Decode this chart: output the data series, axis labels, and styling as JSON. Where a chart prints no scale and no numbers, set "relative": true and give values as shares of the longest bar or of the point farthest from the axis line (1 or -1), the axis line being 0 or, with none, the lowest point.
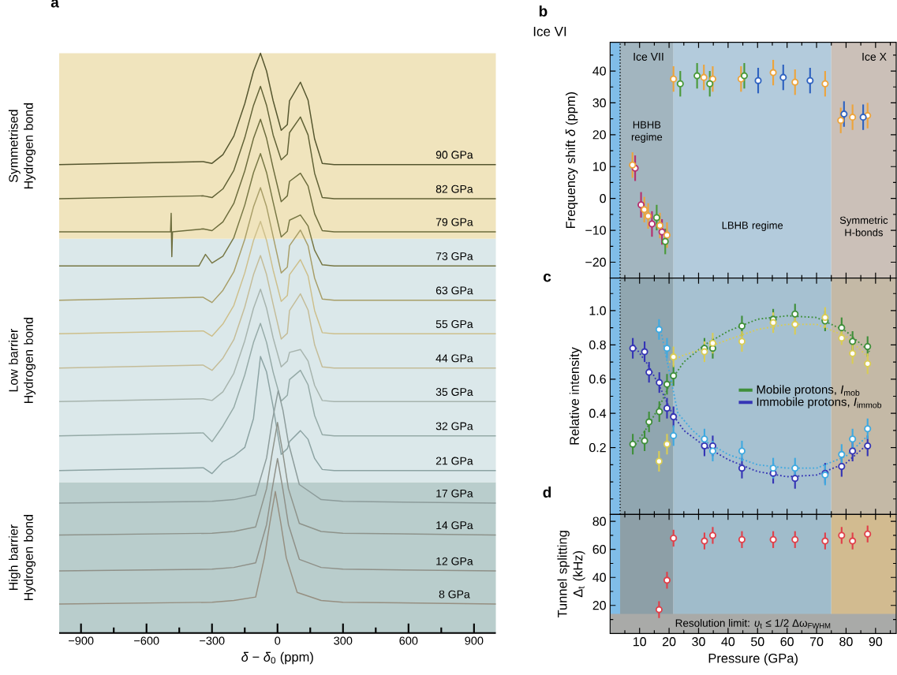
{
  "chart_data": [
    {
      "type": "line",
      "title": "a",
      "xlabel": "*δ* − *δ*$_{0}$ (ppm)",
      "relative": true,
      "xlim": [
        -1000,
        1000
      ],
      "xticks": [
        {
          "value": -900,
          "label": "−900"
        },
        {
          "value": -750,
          "label": null
        },
        {
          "value": -600,
          "label": "−600"
        },
        {
          "value": -450,
          "label": null
        },
        {
          "value": -300,
          "label": "−300"
        },
        {
          "value": -150,
          "label": null
        },
        0,
        {
          "value": 150,
          "label": null
        },
        300,
        {
          "value": 450,
          "label": null
        },
        600,
        {
          "value": 750,
          "label": null
        },
        900
      ],
      "bands": [
        {
          "axis": "y",
          "from": 0,
          "to": 0.26,
          "label": "High barrier Hydrogen bond",
          "color": "#b9cdcc"
        },
        {
          "axis": "y",
          "from": 0.26,
          "to": 0.68,
          "label": "Low barrier Hydrogen bond",
          "color": "#dbe8ea"
        },
        {
          "axis": "y",
          "from": 0.68,
          "to": 1,
          "label": "Symmetrised Hydrogen bond",
          "color": "#f0e4bd"
        }
      ],
      "series": [
        {
          "name": "90 GPa",
          "color": "#55562f",
          "x": [
            -1000,
            -340,
            -300,
            -250,
            -200,
            -150,
            -110,
            -78,
            -50,
            -20,
            17,
            45,
            55,
            105,
            140,
            170,
            205,
            260,
            1000
          ],
          "values": [
            0.808,
            0.813,
            0.81,
            0.825,
            0.857,
            0.913,
            0.969,
            1.0,
            0.969,
            0.918,
            0.867,
            0.877,
            0.918,
            0.95,
            0.919,
            0.852,
            0.81,
            0.808,
            0.808
          ]
        },
        {
          "name": "82 GPa",
          "color": "#616236",
          "x": [
            -1000,
            -340,
            -300,
            -250,
            -200,
            -150,
            -110,
            -78,
            -50,
            -20,
            17,
            45,
            55,
            105,
            140,
            170,
            205,
            260,
            1000
          ],
          "values": [
            0.749,
            0.754,
            0.751,
            0.766,
            0.798,
            0.854,
            0.91,
            0.943,
            0.91,
            0.859,
            0.816,
            0.826,
            0.863,
            0.89,
            0.859,
            0.793,
            0.751,
            0.749,
            0.749
          ]
        },
        {
          "name": "79 GPa",
          "color": "#6c6c3c",
          "x": [
            -1000,
            -490,
            -487,
            -484,
            -481,
            -340,
            -300,
            -250,
            -200,
            -150,
            -110,
            -78,
            -50,
            -20,
            17,
            45,
            55,
            105,
            140,
            170,
            205,
            260,
            1000
          ],
          "values": [
            0.692,
            0.692,
            0.724,
            0.649,
            0.692,
            0.697,
            0.694,
            0.709,
            0.741,
            0.797,
            0.853,
            0.886,
            0.853,
            0.802,
            0.744,
            0.754,
            0.779,
            0.793,
            0.771,
            0.723,
            0.694,
            0.692,
            0.692
          ]
        },
        {
          "name": "73 GPa",
          "color": "#777744",
          "x": [
            -1000,
            -360,
            -330,
            -300,
            -250,
            -200,
            -150,
            -110,
            -78,
            -50,
            -20,
            17,
            45,
            55,
            105,
            140,
            170,
            205,
            260,
            1000
          ],
          "values": [
            0.633,
            0.633,
            0.653,
            0.638,
            0.65,
            0.682,
            0.738,
            0.794,
            0.827,
            0.794,
            0.743,
            0.683,
            0.693,
            0.712,
            0.721,
            0.702,
            0.66,
            0.635,
            0.633,
            0.633
          ]
        },
        {
          "name": "63 GPa",
          "color": "#a89e68",
          "x": [
            -1000,
            -340,
            -300,
            -250,
            -200,
            -150,
            -110,
            -78,
            -50,
            -20,
            17,
            45,
            55,
            105,
            140,
            170,
            205,
            260,
            1000
          ],
          "values": [
            0.574,
            0.579,
            0.57,
            0.591,
            0.623,
            0.679,
            0.735,
            0.768,
            0.735,
            0.684,
            0.621,
            0.631,
            0.668,
            0.695,
            0.668,
            0.612,
            0.576,
            0.574,
            0.574
          ]
        },
        {
          "name": "55 GPa",
          "color": "#cdbf8b",
          "x": [
            -1000,
            -340,
            -300,
            -250,
            -200,
            -150,
            -110,
            -78,
            -50,
            -20,
            17,
            45,
            55,
            105,
            140,
            170,
            205,
            260,
            1000
          ],
          "values": [
            0.516,
            0.521,
            0.512,
            0.533,
            0.565,
            0.621,
            0.677,
            0.71,
            0.677,
            0.626,
            0.572,
            0.582,
            0.618,
            0.644,
            0.616,
            0.556,
            0.518,
            0.516,
            0.516
          ]
        },
        {
          "name": "44 GPa",
          "color": "#c4bc98",
          "x": [
            -1000,
            -340,
            -300,
            -250,
            -200,
            -150,
            -110,
            -78,
            -50,
            -20,
            17,
            45,
            55,
            105,
            140,
            170,
            205,
            260,
            1000
          ],
          "values": [
            0.457,
            0.462,
            0.453,
            0.474,
            0.506,
            0.562,
            0.618,
            0.651,
            0.618,
            0.567,
            0.507,
            0.517,
            0.556,
            0.585,
            0.557,
            0.497,
            0.459,
            0.457,
            0.457
          ]
        },
        {
          "name": "35 GPa",
          "color": "#a7b4ae",
          "x": [
            -1000,
            -340,
            -300,
            -250,
            -200,
            -150,
            -110,
            -78,
            -50,
            -20,
            17,
            45,
            55,
            105,
            140,
            170,
            205,
            260,
            1000
          ],
          "values": [
            0.399,
            0.404,
            0.401,
            0.416,
            0.448,
            0.504,
            0.56,
            0.593,
            0.56,
            0.509,
            0.459,
            0.469,
            0.484,
            0.489,
            0.469,
            0.427,
            0.401,
            0.399,
            0.399
          ]
        },
        {
          "name": "32 GPa",
          "color": "#95aaa7",
          "x": [
            -1000,
            -340,
            -300,
            -250,
            -200,
            -150,
            -110,
            -78,
            -50,
            -20,
            17,
            45,
            55,
            105,
            140,
            170,
            205,
            260,
            1000
          ],
          "values": [
            0.34,
            0.345,
            0.33,
            0.357,
            0.389,
            0.445,
            0.501,
            0.534,
            0.501,
            0.45,
            0.4,
            0.41,
            0.437,
            0.453,
            0.428,
            0.375,
            0.342,
            0.34,
            0.34
          ]
        },
        {
          "name": "21 GPa",
          "color": "#8ca3a3",
          "x": [
            -1000,
            -340,
            -300,
            -250,
            -200,
            -150,
            -110,
            -78,
            -50,
            -20,
            17,
            45,
            55,
            105,
            140,
            170,
            205,
            260,
            1000
          ],
          "values": [
            0.28,
            0.285,
            0.275,
            0.295,
            0.305,
            0.32,
            0.37,
            0.477,
            0.45,
            0.39,
            0.308,
            0.318,
            0.33,
            0.349,
            0.334,
            0.301,
            0.282,
            0.28,
            0.28
          ]
        },
        {
          "name": "17 GPa",
          "color": "#8d9c9b",
          "x": [
            -1000,
            -300,
            -200,
            -100,
            -50,
            -25,
            3,
            25,
            50,
            100,
            200,
            300,
            1000
          ],
          "values": [
            0.224,
            0.227,
            0.23,
            0.238,
            0.302,
            0.364,
            0.418,
            0.384,
            0.328,
            0.256,
            0.23,
            0.227,
            0.224
          ]
        },
        {
          "name": "14 GPa",
          "color": "#8e938b",
          "x": [
            -1000,
            -300,
            -200,
            -100,
            -50,
            -25,
            0,
            25,
            50,
            100,
            200,
            300,
            1000
          ],
          "values": [
            0.169,
            0.172,
            0.175,
            0.183,
            0.249,
            0.309,
            0.363,
            0.309,
            0.249,
            0.189,
            0.175,
            0.172,
            0.169
          ]
        },
        {
          "name": "12 GPa",
          "color": "#8f9088",
          "x": [
            -1000,
            -300,
            -200,
            -100,
            -50,
            -25,
            0,
            25,
            50,
            100,
            200,
            300,
            1000
          ],
          "values": [
            0.107,
            0.11,
            0.113,
            0.121,
            0.187,
            0.247,
            0.301,
            0.247,
            0.187,
            0.127,
            0.113,
            0.11,
            0.107
          ]
        },
        {
          "name": "8 GPa",
          "color": "#968f81",
          "x": [
            -1000,
            -300,
            -200,
            -100,
            -60,
            -35,
            -10,
            15,
            40,
            90,
            200,
            300,
            1000
          ],
          "values": [
            0.05,
            0.053,
            0.056,
            0.062,
            0.13,
            0.19,
            0.244,
            0.19,
            0.13,
            0.07,
            0.056,
            0.053,
            0.05
          ]
        }
      ]
    },
    {
      "type": "scatter",
      "title": "b",
      "ylabel": "Frequency shift *δ* (ppm)",
      "xlim": [
        0,
        97
      ],
      "ylim": [
        -25,
        49
      ],
      "tick_labels": "y",
      "marker": "circle",
      "xticks": [
        {
          "value": 5,
          "label": null
        },
        10,
        {
          "value": 15,
          "label": null
        },
        20,
        {
          "value": 25,
          "label": null
        },
        30,
        {
          "value": 35,
          "label": null
        },
        40,
        {
          "value": 45,
          "label": null
        },
        50,
        {
          "value": 55,
          "label": null
        },
        60,
        {
          "value": 65,
          "label": null
        },
        70,
        {
          "value": 75,
          "label": null
        },
        80,
        {
          "value": 85,
          "label": null
        },
        90,
        {
          "value": 95,
          "label": null
        }
      ],
      "yticks": [
        {
          "value": -20,
          "label": "−20"
        },
        {
          "value": -15,
          "label": null
        },
        {
          "value": -10,
          "label": "−10"
        },
        {
          "value": -5,
          "label": null
        },
        0,
        {
          "value": 5,
          "label": null
        },
        10,
        {
          "value": 15,
          "label": null
        },
        20,
        {
          "value": 25,
          "label": null
        },
        30,
        {
          "value": 35,
          "label": null
        },
        40,
        {
          "value": 45,
          "label": null
        }
      ],
      "annotations": [
        "Ice VI",
        "Ice VII",
        "Ice X"
      ],
      "ref_lines": [
        {
          "axis": "x",
          "value": 3.4,
          "line_style": "dotted"
        }
      ],
      "bands": [
        {
          "axis": "x",
          "from": 0,
          "to": 3.4,
          "color": "#80bde8"
        },
        {
          "axis": "x",
          "from": 3.4,
          "to": 21.5,
          "label": "HBHB regime",
          "color": "#a2b5bf"
        },
        {
          "axis": "x",
          "from": 21.5,
          "to": 75,
          "label": "LBHB regime",
          "color": "#b3cbdc"
        },
        {
          "axis": "x",
          "from": 75,
          "to": 97,
          "label": "Symmetric H-bonds",
          "color": "#cbc0b8"
        }
      ],
      "series": [
        {
          "color": "#b5306e",
          "x": [
            8.5,
            10.5,
            14.2,
            17.6
          ],
          "values": [
            9.5,
            -2,
            -8,
            -10.5
          ],
          "errors": [
            4,
            4,
            4,
            4
          ]
        },
        {
          "color": "#eda43c",
          "x": [
            7.6,
            11.6,
            12.9,
            16.9,
            19.3,
            21.5,
            31.8,
            34.8,
            44.4,
            55.3,
            62.7,
            72.9,
            78.2,
            82.2,
            87.3
          ],
          "values": [
            10.5,
            -3.5,
            -5.5,
            -8.5,
            -11.5,
            37.5,
            38,
            37.5,
            37.5,
            39.5,
            36.5,
            36,
            24.5,
            25.5,
            26
          ],
          "errors": [
            4,
            4,
            4,
            4,
            4,
            4,
            4,
            4,
            4,
            4,
            4,
            4,
            4,
            4,
            4
          ]
        },
        {
          "color": "#4a9a3a",
          "x": [
            15.8,
            18.7,
            23.8,
            29.5,
            33.8,
            45.5
          ],
          "values": [
            -6,
            -13.5,
            36,
            38.5,
            36,
            38.5
          ],
          "errors": [
            4,
            4,
            4,
            4,
            4,
            4
          ]
        },
        {
          "color": "#2e62c0",
          "x": [
            50.2,
            58.7,
            67.8,
            79.3,
            85.8
          ],
          "values": [
            37,
            38,
            37,
            26.5,
            25.5
          ],
          "errors": [
            4,
            4,
            4,
            4,
            4
          ]
        }
      ]
    },
    {
      "type": "scatter",
      "title": "c",
      "ylabel": "Relative intensity",
      "xlim": [
        0,
        97
      ],
      "ylim": [
        -0.19,
        1.19
      ],
      "tick_labels": "y",
      "marker": "circle",
      "legend": "right",
      "xticks": [
        {
          "value": 5,
          "label": null
        },
        10,
        {
          "value": 15,
          "label": null
        },
        20,
        {
          "value": 25,
          "label": null
        },
        30,
        {
          "value": 35,
          "label": null
        },
        40,
        {
          "value": 45,
          "label": null
        },
        50,
        {
          "value": 55,
          "label": null
        },
        60,
        {
          "value": 65,
          "label": null
        },
        70,
        {
          "value": 75,
          "label": null
        },
        80,
        {
          "value": 85,
          "label": null
        },
        90,
        {
          "value": 95,
          "label": null
        }
      ],
      "yticks": [
        {
          "value": -0.1,
          "label": null
        },
        {
          "value": 0,
          "label": null
        },
        {
          "value": 0.1,
          "label": null
        },
        0.2,
        {
          "value": 0.3,
          "label": null
        },
        0.4,
        {
          "value": 0.5,
          "label": null
        },
        0.6,
        {
          "value": 0.7,
          "label": null
        },
        0.8,
        {
          "value": 0.9,
          "label": null
        },
        {
          "value": 1,
          "label": "1.0"
        },
        {
          "value": 1.1,
          "label": null
        }
      ],
      "ref_lines": [
        {
          "axis": "x",
          "value": 3.4,
          "line_style": "dotted"
        }
      ],
      "bands": [
        {
          "axis": "x",
          "from": 0,
          "to": 3.4,
          "color": "#80bde8"
        },
        {
          "axis": "x",
          "from": 3.4,
          "to": 21.5,
          "color": "#90a6b0"
        },
        {
          "axis": "x",
          "from": 21.5,
          "to": 75,
          "color": "#a6c1d1"
        },
        {
          "axis": "x",
          "from": 75,
          "to": 97,
          "color": "#c4b9a6"
        }
      ],
      "series": [
        {
          "type": "line",
          "line_style": "dotted",
          "marker": "none",
          "color": "#3f8f3a",
          "x": [
            8,
            13,
            17,
            21,
            25,
            32,
            40,
            50,
            60,
            70,
            80,
            88
          ],
          "values": [
            0.2,
            0.33,
            0.45,
            0.6,
            0.7,
            0.8,
            0.88,
            0.95,
            0.97,
            0.96,
            0.88,
            0.76
          ]
        },
        {
          "type": "line",
          "line_style": "dotted",
          "marker": "none",
          "color": "#d9cc55",
          "x": [
            20,
            25,
            32,
            40,
            50,
            60,
            70,
            80,
            88
          ],
          "values": [
            0.7,
            0.74,
            0.78,
            0.83,
            0.89,
            0.92,
            0.92,
            0.85,
            0.72
          ]
        },
        {
          "type": "line",
          "line_style": "dotted",
          "marker": "none",
          "color": "#3535b5",
          "x": [
            8,
            13,
            17,
            21,
            25,
            32,
            40,
            50,
            60,
            70,
            80,
            88
          ],
          "values": [
            0.8,
            0.68,
            0.55,
            0.4,
            0.3,
            0.21,
            0.13,
            0.06,
            0.03,
            0.04,
            0.11,
            0.23
          ]
        },
        {
          "type": "line",
          "line_style": "dotted",
          "marker": "none",
          "color": "#3fa9e0",
          "x": [
            17,
            20,
            23,
            28,
            32,
            40,
            50,
            60,
            70,
            80,
            88
          ],
          "values": [
            0.9,
            0.65,
            0.4,
            0.3,
            0.24,
            0.16,
            0.1,
            0.08,
            0.08,
            0.15,
            0.28
          ]
        },
        {
          "name": "Mobile protons, *I*$_{mob}$",
          "color": "#3f8f3a",
          "x": [
            7.7,
            11.7,
            13.2,
            16.7,
            19.3,
            21.5,
            32.0,
            34.8,
            44.7,
            55.3,
            62.7,
            72.9,
            78.5,
            82.2,
            87.3
          ],
          "values": [
            0.22,
            0.24,
            0.35,
            0.41,
            0.57,
            0.62,
            0.78,
            0.78,
            0.91,
            0.95,
            0.98,
            0.94,
            0.9,
            0.82,
            0.79
          ],
          "errors": [
            0.06,
            0.06,
            0.06,
            0.06,
            0.06,
            0.06,
            0.06,
            0.06,
            0.06,
            0.06,
            0.06,
            0.06,
            0.06,
            0.06,
            0.06
          ]
        },
        {
          "color": "#d9cc55",
          "x": [
            16.6,
            19.3,
            21.5,
            32.0,
            34.8,
            44.7,
            55.3,
            62.7,
            72.9,
            78.5,
            82.2,
            87.3
          ],
          "values": [
            0.12,
            0.22,
            0.73,
            0.76,
            0.81,
            0.82,
            0.93,
            0.92,
            0.96,
            0.84,
            0.75,
            0.69
          ],
          "errors": [
            0.06,
            0.06,
            0.06,
            0.06,
            0.06,
            0.06,
            0.06,
            0.06,
            0.06,
            0.04,
            0.06,
            0.06
          ]
        },
        {
          "name": "Immobile protons, *I*$_{immob}$",
          "color": "#3535b5",
          "x": [
            7.7,
            11.7,
            13.2,
            16.7,
            19.3,
            21.5,
            32.0,
            34.8,
            44.7,
            55.3,
            62.7,
            72.9,
            78.5,
            82.2,
            87.3
          ],
          "values": [
            0.78,
            0.76,
            0.64,
            0.58,
            0.43,
            0.38,
            0.21,
            0.21,
            0.08,
            0.05,
            0.02,
            0.05,
            0.09,
            0.18,
            0.21
          ],
          "errors": [
            0.06,
            0.06,
            0.06,
            0.06,
            0.06,
            0.06,
            0.06,
            0.06,
            0.06,
            0.06,
            0.06,
            0.06,
            0.06,
            0.06,
            0.06
          ]
        },
        {
          "color": "#3fa9e0",
          "x": [
            16.6,
            19.3,
            21.5,
            32.0,
            34.8,
            44.7,
            55.3,
            62.7,
            72.9,
            78.5,
            82.2,
            87.3
          ],
          "values": [
            0.89,
            0.78,
            0.27,
            0.25,
            0.18,
            0.18,
            0.08,
            0.08,
            0.04,
            0.16,
            0.25,
            0.31
          ],
          "errors": [
            0.06,
            0.06,
            0.06,
            0.06,
            0.06,
            0.06,
            0.06,
            0.06,
            0.06,
            0.06,
            0.06,
            0.06
          ]
        }
      ]
    },
    {
      "type": "scatter",
      "title": "d",
      "xlabel": "Pressure (GPa)",
      "ylabel": "Tunnel splitting Δ$_{t}$ (kHz)",
      "xlim": [
        0,
        97
      ],
      "ylim": [
        0,
        85
      ],
      "marker": "circle",
      "xticks": [
        {
          "value": 5,
          "label": null
        },
        10,
        {
          "value": 15,
          "label": null
        },
        20,
        {
          "value": 25,
          "label": null
        },
        30,
        {
          "value": 35,
          "label": null
        },
        40,
        {
          "value": 45,
          "label": null
        },
        50,
        {
          "value": 55,
          "label": null
        },
        60,
        {
          "value": 65,
          "label": null
        },
        70,
        {
          "value": 75,
          "label": null
        },
        80,
        {
          "value": 85,
          "label": null
        },
        90,
        {
          "value": 95,
          "label": null
        }
      ],
      "yticks": [
        {
          "value": 10,
          "label": null
        },
        20,
        {
          "value": 30,
          "label": null
        },
        40,
        {
          "value": 50,
          "label": null
        },
        60,
        {
          "value": 70,
          "label": null
        },
        80
      ],
      "bands": [
        {
          "axis": "x",
          "from": 0,
          "to": 3.4,
          "color": "#80bde8"
        },
        {
          "axis": "x",
          "from": 3.4,
          "to": 21.5,
          "color": "#8d9fa7"
        },
        {
          "axis": "x",
          "from": 21.5,
          "to": 75,
          "color": "#a0bccb"
        },
        {
          "axis": "x",
          "from": 75,
          "to": 97,
          "color": "#d2bb90"
        },
        {
          "axis": "y",
          "from": 0,
          "to": 14,
          "label": "Resolution limit: *υ*$_{t}$ ≤ 1/2 Δω$_{FWHM}$",
          "color": "#a9aaa8"
        }
      ],
      "series": [
        {
          "color": "#e0404a",
          "x": [
            16.6,
            19.3,
            21.5,
            32.0,
            34.8,
            44.7,
            55.3,
            62.7,
            72.9,
            78.5,
            82.2,
            87.3
          ],
          "values": [
            17,
            38,
            68,
            66,
            70,
            67,
            67,
            67,
            66,
            70,
            66,
            71
          ],
          "errors": [
            6,
            6,
            6,
            6,
            6,
            6,
            6,
            6,
            6,
            6,
            6,
            6
          ]
        }
      ]
    }
  ]
}
